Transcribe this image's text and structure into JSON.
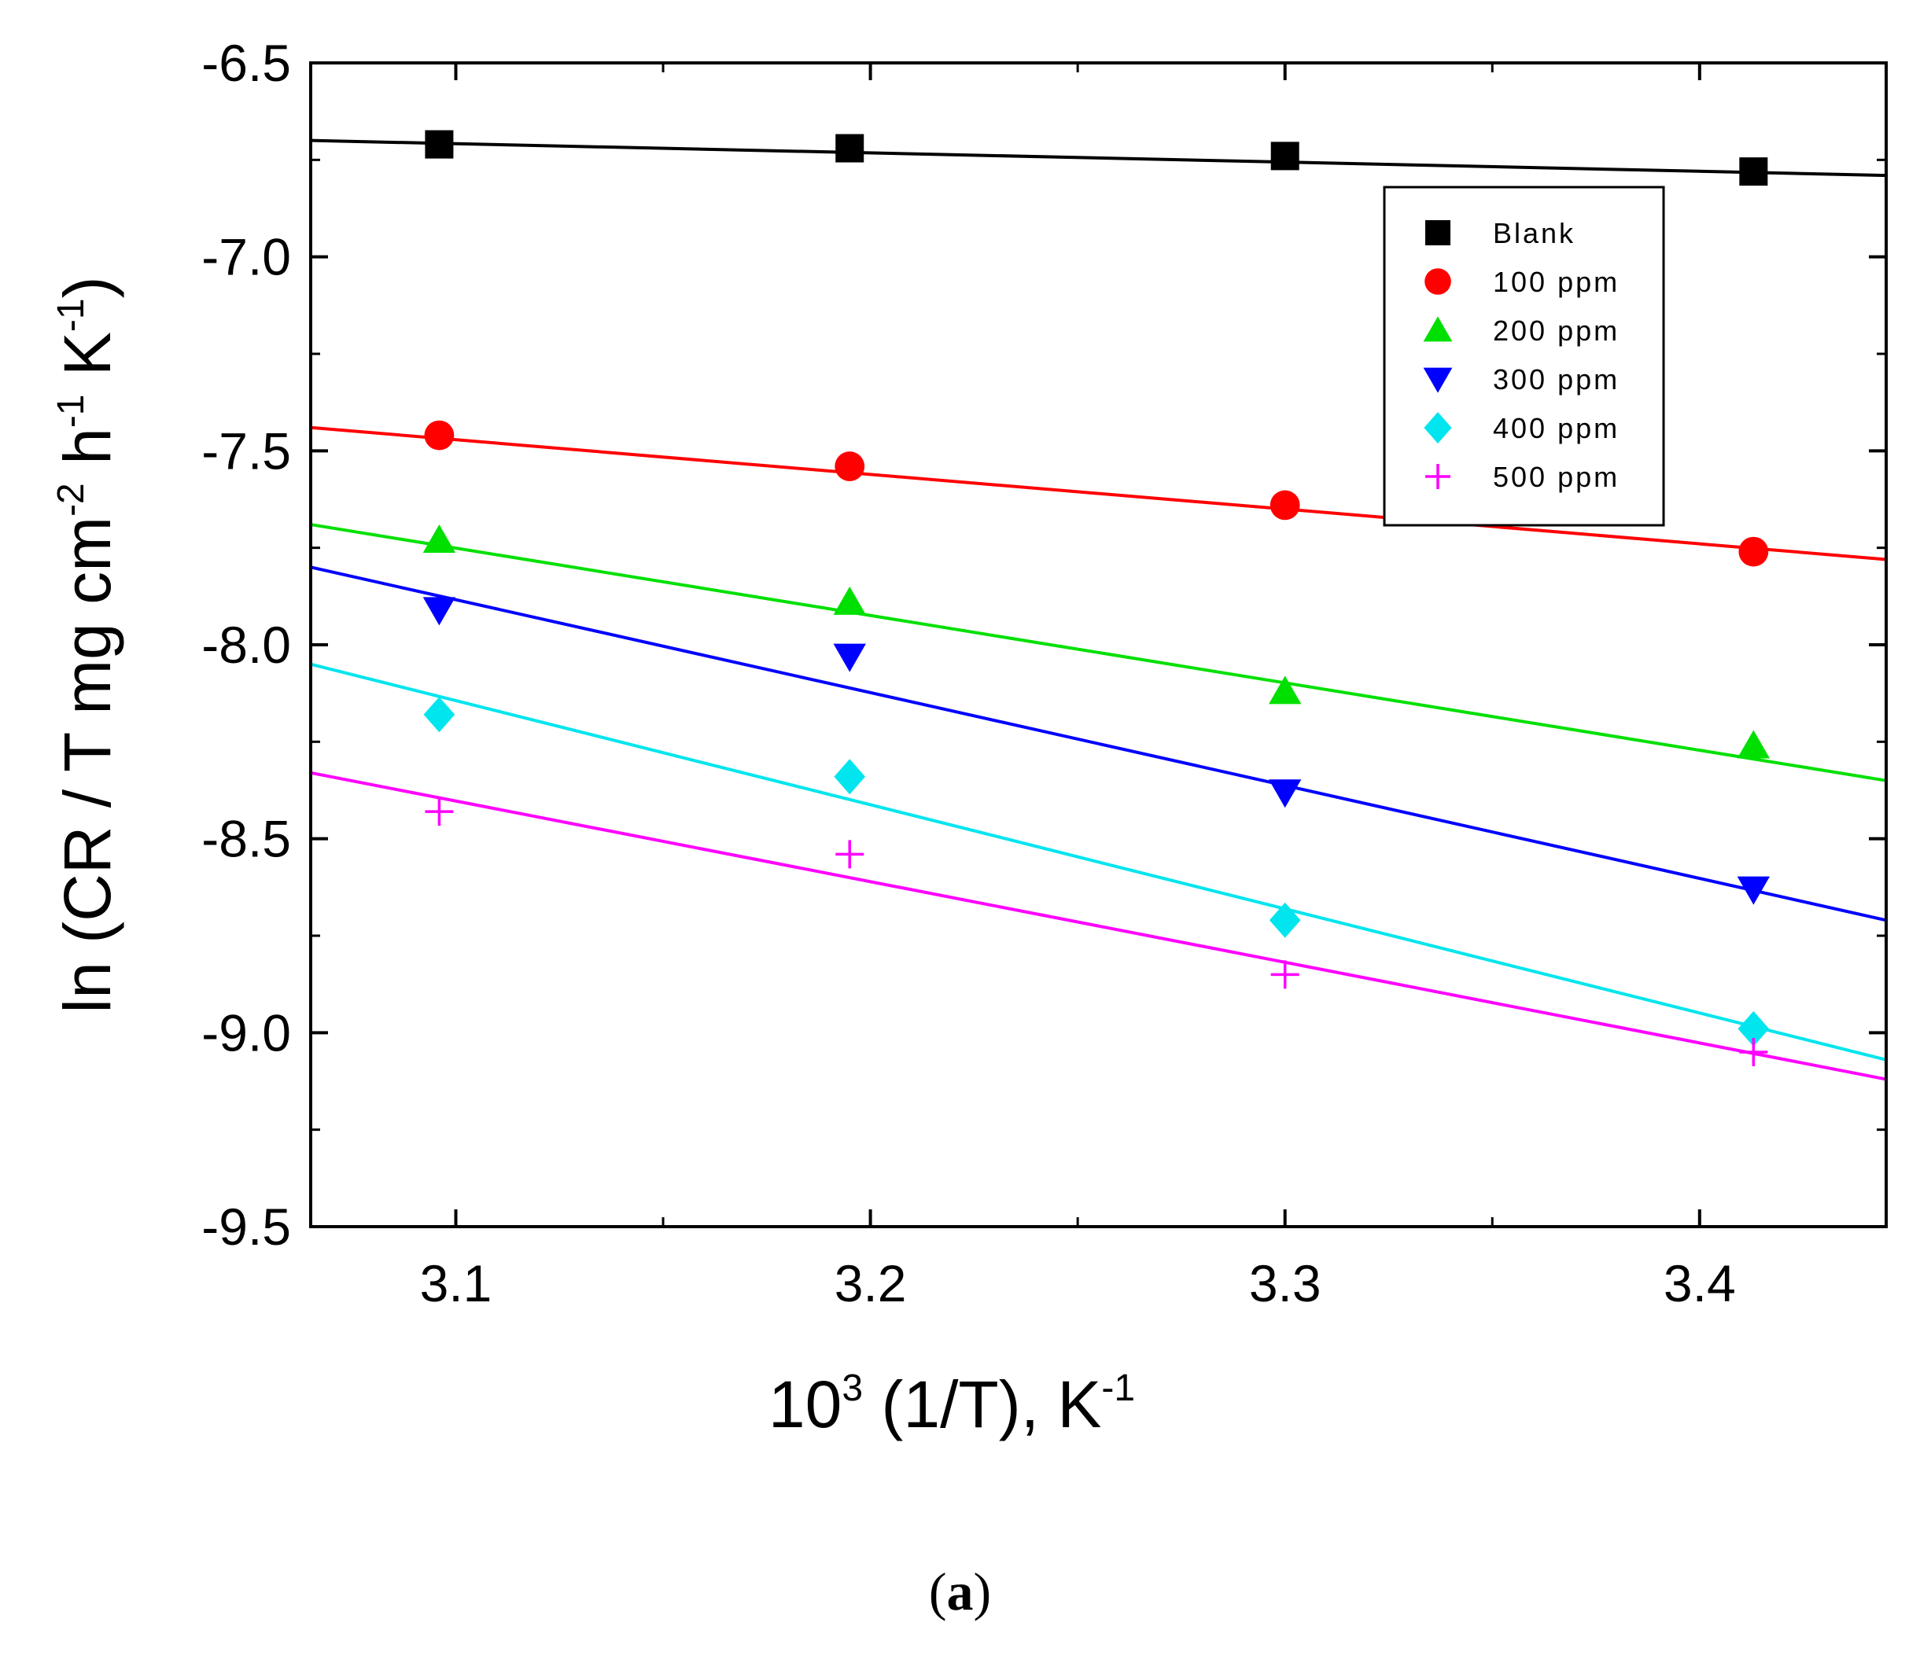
{
  "chart_data": {
    "type": "scatter",
    "title": "",
    "xlabel": {
      "base": "10",
      "base_sup": "3",
      "text": " (1/T), K",
      "text_sup": "-1"
    },
    "ylabel": {
      "parts": [
        {
          "t": "ln (CR / T mg cm",
          "s": false
        },
        {
          "t": "-2",
          "s": true
        },
        {
          "t": " h",
          "s": false
        },
        {
          "t": "-1",
          "s": true
        },
        {
          "t": " K",
          "s": false
        },
        {
          "t": "-1",
          "s": true
        },
        {
          "t": ")",
          "s": false
        }
      ]
    },
    "xlim": [
      3.065,
      3.445
    ],
    "ylim": [
      -9.5,
      -6.5
    ],
    "xticks": [
      3.1,
      3.2,
      3.3,
      3.4
    ],
    "xtick_labels": [
      "3.1",
      "3.2",
      "3.3",
      "3.4"
    ],
    "yticks": [
      -6.5,
      -7.0,
      -7.5,
      -8.0,
      -8.5,
      -9.0,
      -9.5
    ],
    "ytick_labels": [
      "-6.5",
      "-7.0",
      "-7.5",
      "-8.0",
      "-8.5",
      "-9.0",
      "-9.5"
    ],
    "legend_position": "top-right",
    "x": [
      3.096,
      3.195,
      3.3,
      3.413
    ],
    "series": [
      {
        "name": "Blank",
        "color": "#000000",
        "marker": "square",
        "values": [
          -6.71,
          -6.72,
          -6.74,
          -6.78
        ],
        "fit": {
          "x": [
            3.065,
            3.445
          ],
          "y": [
            -6.7,
            -6.79
          ]
        }
      },
      {
        "name": "100 ppm",
        "color": "#ff0000",
        "marker": "circle",
        "values": [
          -7.46,
          -7.54,
          -7.64,
          -7.76
        ],
        "fit": {
          "x": [
            3.065,
            3.445
          ],
          "y": [
            -7.44,
            -7.78
          ]
        }
      },
      {
        "name": "200 ppm",
        "color": "#00e000",
        "marker": "triangle-up",
        "values": [
          -7.73,
          -7.89,
          -8.12,
          -8.26
        ],
        "fit": {
          "x": [
            3.065,
            3.445
          ],
          "y": [
            -7.69,
            -8.35
          ]
        }
      },
      {
        "name": "300 ppm",
        "color": "#0000ff",
        "marker": "triangle-down",
        "values": [
          -7.91,
          -8.03,
          -8.38,
          -8.63
        ],
        "fit": {
          "x": [
            3.065,
            3.445
          ],
          "y": [
            -7.8,
            -8.71
          ]
        }
      },
      {
        "name": "400 ppm",
        "color": "#00e5ee",
        "marker": "diamond",
        "values": [
          -8.18,
          -8.34,
          -8.71,
          -8.99
        ],
        "fit": {
          "x": [
            3.065,
            3.445
          ],
          "y": [
            -8.05,
            -9.07
          ]
        }
      },
      {
        "name": "500 ppm",
        "color": "#ff00ff",
        "marker": "plus",
        "values": [
          -8.43,
          -8.54,
          -8.85,
          -9.05
        ],
        "fit": {
          "x": [
            3.065,
            3.445
          ],
          "y": [
            -8.33,
            -9.12
          ]
        }
      }
    ]
  },
  "caption": {
    "open": "(",
    "label": "a",
    "close": ")"
  }
}
